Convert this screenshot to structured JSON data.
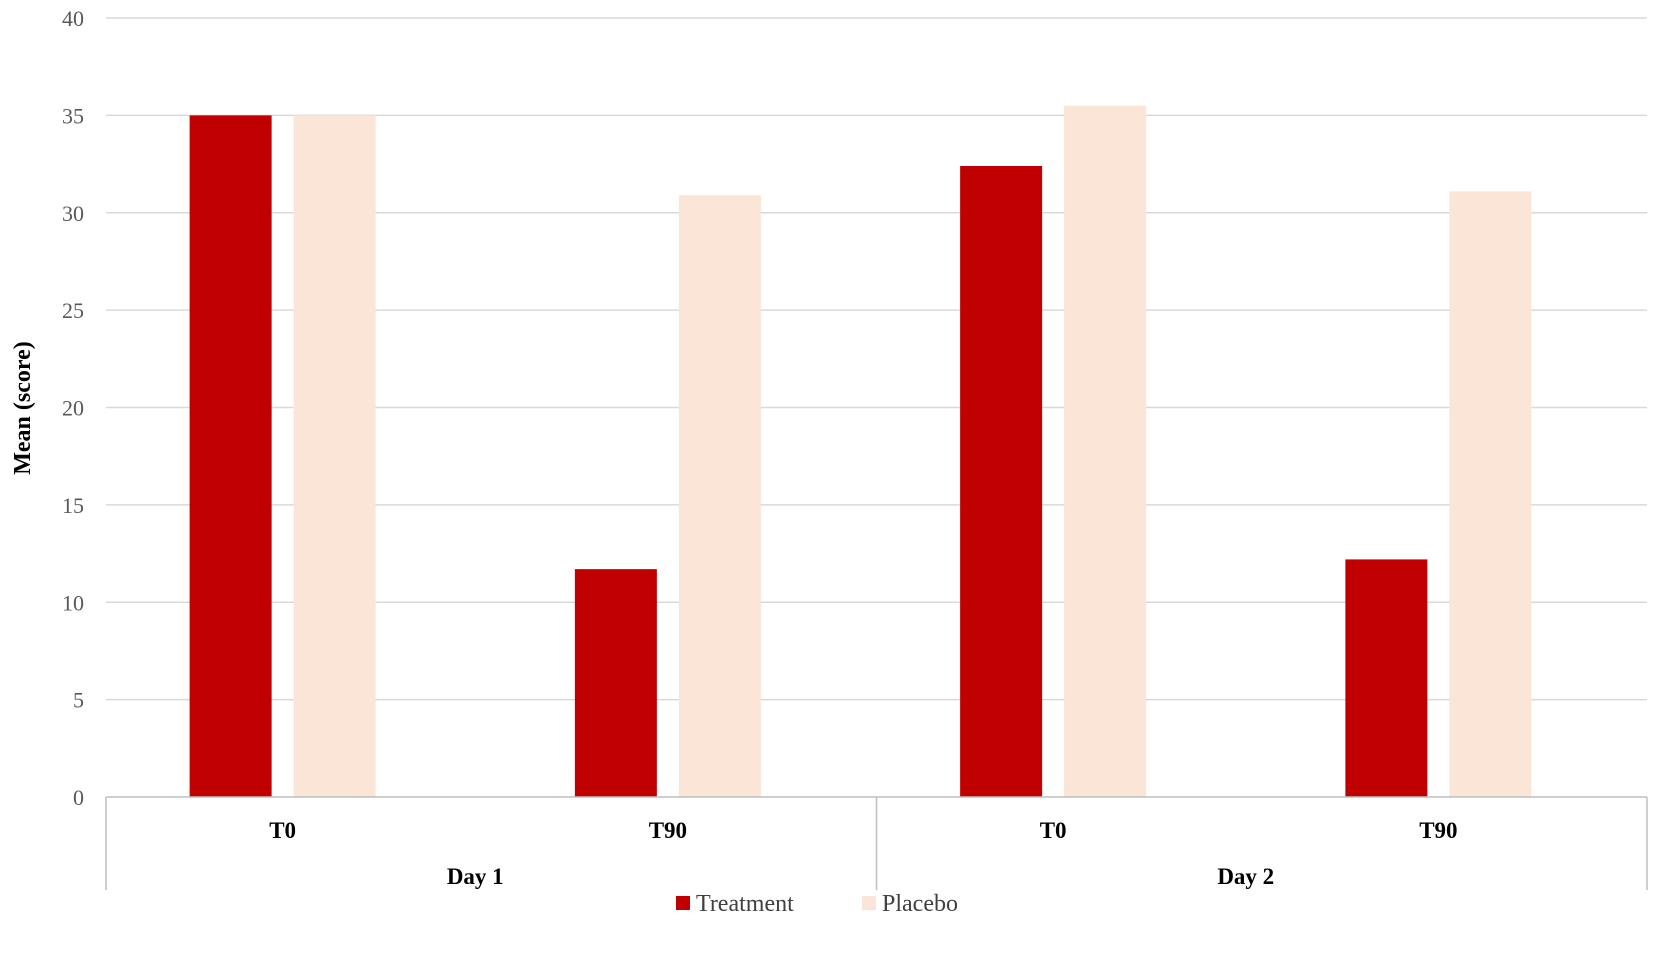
{
  "chart_data": {
    "type": "bar",
    "title": "",
    "ylabel": "Mean (score)",
    "xlabel": "",
    "ylim": [
      0,
      40
    ],
    "yticks": [
      0,
      5,
      10,
      15,
      20,
      25,
      30,
      35,
      40
    ],
    "grid": true,
    "legend_position": "bottom",
    "groups": [
      {
        "label": "Day 1",
        "categories": [
          "T0",
          "T90"
        ]
      },
      {
        "label": "Day 2",
        "categories": [
          "T0",
          "T90"
        ]
      }
    ],
    "categories": [
      "T0",
      "T90",
      "T0",
      "T90"
    ],
    "series": [
      {
        "name": "Treatment",
        "color": "#c00000",
        "values": [
          35.0,
          11.7,
          32.4,
          12.2
        ]
      },
      {
        "name": "Placebo",
        "color": "#fbe5d6",
        "values": [
          35.0,
          30.9,
          35.5,
          31.1
        ]
      }
    ]
  }
}
